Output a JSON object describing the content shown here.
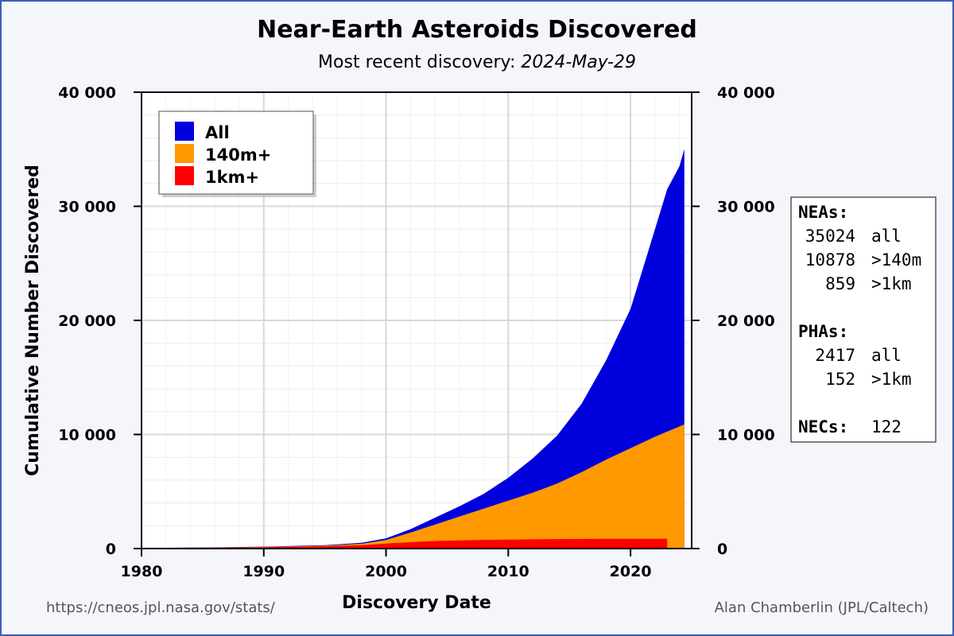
{
  "header": {
    "title": "Near-Earth Asteroids Discovered",
    "subtitle_prefix": "Most recent discovery: ",
    "subtitle_date": "2024-May-29"
  },
  "footer": {
    "url": "https://cneos.jpl.nasa.gov/stats/",
    "author": "Alan Chamberlin (JPL/Caltech)"
  },
  "stats_box": {
    "neas_heading": "NEAs:",
    "neas": [
      {
        "value": "35024",
        "label": "all"
      },
      {
        "value": "10878",
        "label": ">140m"
      },
      {
        "value": "859",
        "label": ">1km"
      }
    ],
    "phas_heading": "PHAs:",
    "phas": [
      {
        "value": "2417",
        "label": "all"
      },
      {
        "value": "152",
        "label": ">1km"
      }
    ],
    "necs_heading": "NECs:",
    "necs_value": "122"
  },
  "chart_data": {
    "type": "area",
    "title": "Near-Earth Asteroids Discovered",
    "subtitle": "Most recent discovery: 2024-May-29",
    "xlabel": "Discovery Date",
    "ylabel": "Cumulative Number Discovered",
    "xlim": [
      1980,
      2025
    ],
    "ylim": [
      0,
      40000
    ],
    "x_ticks": [
      {
        "value": 1980,
        "label": "1980"
      },
      {
        "value": 1990,
        "label": "1990"
      },
      {
        "value": 2000,
        "label": "2000"
      },
      {
        "value": 2010,
        "label": "2010"
      },
      {
        "value": 2020,
        "label": "2020"
      }
    ],
    "y_ticks": [
      {
        "value": 0,
        "label": "0"
      },
      {
        "value": 10000,
        "label": "10 000"
      },
      {
        "value": 20000,
        "label": "20 000"
      },
      {
        "value": 30000,
        "label": "30 000"
      },
      {
        "value": 40000,
        "label": "40 000"
      }
    ],
    "grid": true,
    "legend_position": "top-left",
    "series": [
      {
        "name": "All",
        "color": "#0000dd",
        "x": [
          1980,
          1985,
          1990,
          1995,
          1998,
          2000,
          2002,
          2004,
          2006,
          2008,
          2010,
          2012,
          2014,
          2016,
          2018,
          2020,
          2022,
          2023,
          2024,
          2024.4
        ],
        "y": [
          50,
          100,
          170,
          300,
          500,
          900,
          1700,
          2700,
          3700,
          4800,
          6200,
          7900,
          9900,
          12700,
          16500,
          21000,
          28000,
          31500,
          33500,
          35024
        ]
      },
      {
        "name": "140m+",
        "color": "#ff9900",
        "x": [
          1980,
          1985,
          1990,
          1995,
          1998,
          2000,
          2002,
          2004,
          2006,
          2008,
          2010,
          2012,
          2014,
          2016,
          2018,
          2020,
          2022,
          2023,
          2024,
          2024.4
        ],
        "y": [
          40,
          80,
          140,
          250,
          420,
          750,
          1400,
          2100,
          2800,
          3500,
          4200,
          4900,
          5700,
          6700,
          7800,
          8800,
          9800,
          10250,
          10700,
          10878
        ]
      },
      {
        "name": "1km+",
        "color": "#ff0000",
        "x": [
          1980,
          1985,
          1990,
          1995,
          1998,
          2000,
          2002,
          2004,
          2006,
          2008,
          2010,
          2012,
          2014,
          2016,
          2018,
          2020,
          2022,
          2023
        ],
        "y": [
          30,
          60,
          110,
          200,
          300,
          430,
          560,
          660,
          720,
          760,
          790,
          810,
          830,
          840,
          850,
          855,
          858,
          859
        ]
      }
    ]
  }
}
